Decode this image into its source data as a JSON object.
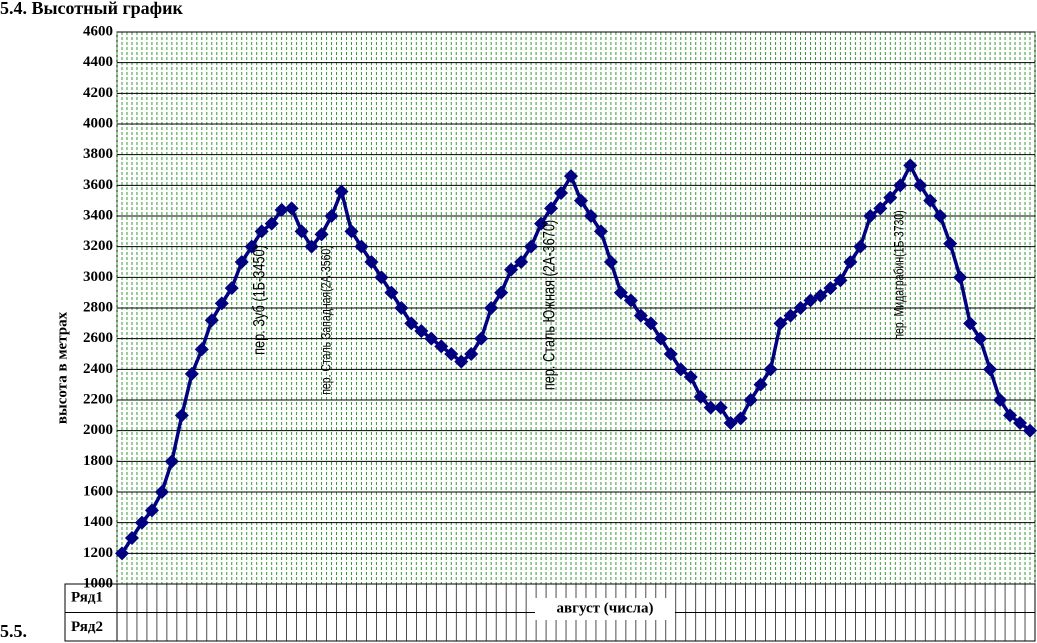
{
  "heading": "5.4. Высотный график",
  "footer": "5.5.",
  "chart_data": {
    "type": "line",
    "y_label": "высота в метрах",
    "x_label": "август (числа)",
    "categories": [
      null,
      null,
      null,
      null,
      null,
      null,
      null,
      null,
      null,
      null,
      null,
      null,
      null,
      null,
      null,
      null,
      null,
      null,
      null,
      null,
      null,
      null,
      null,
      null,
      null,
      null,
      null,
      null,
      null,
      null,
      null,
      null,
      null,
      null,
      null,
      null,
      null,
      null,
      null,
      null,
      null,
      null,
      null,
      null,
      null,
      null,
      null,
      null,
      null,
      null,
      null,
      null,
      null,
      null,
      null,
      null,
      null,
      null,
      null,
      null,
      null,
      null,
      null,
      null,
      null,
      null,
      null,
      null,
      null,
      null,
      null,
      null,
      null,
      null,
      null,
      null,
      null,
      null,
      null,
      null,
      null,
      null,
      null,
      null,
      null,
      null,
      null,
      null,
      null,
      null,
      null,
      null
    ],
    "series": [
      {
        "name": "Ряд1",
        "color": "#000080",
        "values": [
          1200,
          1300,
          1400,
          1480,
          1600,
          1800,
          2100,
          2370,
          2530,
          2720,
          2830,
          2930,
          3100,
          3200,
          3300,
          3350,
          3440,
          3450,
          3300,
          3200,
          3280,
          3400,
          3560,
          3300,
          3200,
          3100,
          3000,
          2900,
          2800,
          2700,
          2650,
          2600,
          2550,
          2500,
          2450,
          2500,
          2600,
          2800,
          2900,
          3050,
          3100,
          3200,
          3350,
          3450,
          3550,
          3660,
          3500,
          3400,
          3300,
          3100,
          2900,
          2850,
          2750,
          2700,
          2600,
          2500,
          2400,
          2350,
          2220,
          2150,
          2150,
          2050,
          2080,
          2200,
          2300,
          2400,
          2700,
          2750,
          2800,
          2850,
          2880,
          2930,
          2980,
          3100,
          3200,
          3400,
          3450,
          3520,
          3600,
          3730,
          3600,
          3500,
          3400,
          3220,
          3000,
          2700,
          2600,
          2400,
          2200,
          2100,
          2050,
          2000
        ]
      },
      {
        "name": "Ряд2",
        "values": [
          null,
          null,
          null,
          null,
          null,
          null,
          null,
          null,
          null,
          null,
          null,
          null,
          null,
          null,
          null,
          null,
          null,
          null,
          null,
          null,
          null,
          null,
          null,
          null,
          null,
          null,
          null,
          null,
          null,
          null,
          null,
          null,
          null,
          null,
          null,
          null,
          null,
          null,
          null,
          null,
          null,
          null,
          null,
          null,
          null,
          null,
          null,
          null,
          null,
          null,
          null,
          null,
          null,
          null,
          null,
          null,
          null,
          null,
          null,
          null,
          null,
          null,
          null,
          null,
          null,
          null,
          null,
          null,
          null,
          null,
          null,
          null,
          null,
          null,
          null,
          null,
          null,
          null,
          null,
          null,
          null,
          null,
          null,
          null,
          null,
          null,
          null,
          null,
          null,
          null,
          null,
          null
        ]
      }
    ],
    "annotations": [
      "пер. Зуб (1Б-3450)",
      "пер. Сталь Западная(2А-3560)",
      "пер. Сталь Южная (2А-3670)",
      "пер. Мидаграбин(1Б-3730)"
    ],
    "ylim": [
      1000,
      4600
    ],
    "yticks": [
      1000,
      1200,
      1400,
      1600,
      1800,
      2000,
      2200,
      2400,
      2600,
      2800,
      3000,
      3200,
      3400,
      3600,
      3800,
      4000,
      4200,
      4400,
      4600
    ],
    "grid": true
  }
}
